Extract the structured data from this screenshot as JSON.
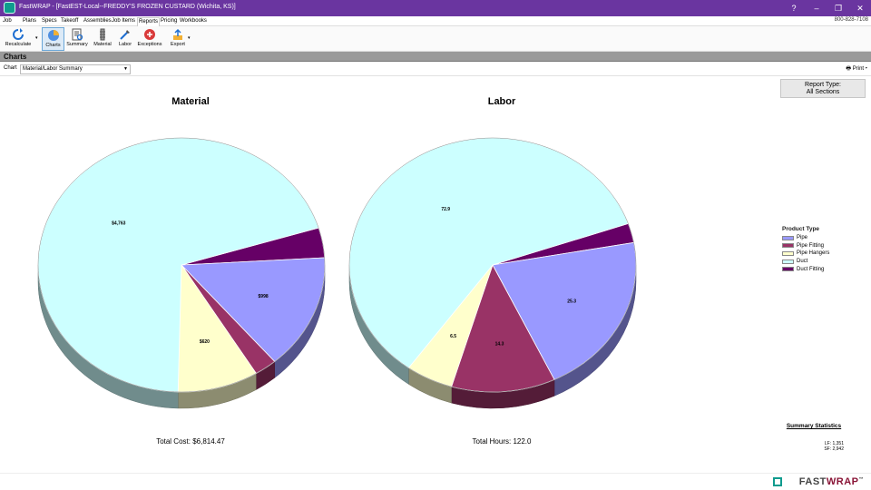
{
  "window": {
    "title": "FastWRAP - [FastEST-Local--FREDDY'S FROZEN CUSTARD (Wichita, KS)]"
  },
  "menu": {
    "items": [
      "Job",
      "Plans",
      "Specs",
      "Takeoff",
      "Assemblies",
      "Job Items",
      "Reports",
      "Pricing",
      "Workbooks"
    ],
    "active": "Reports",
    "phone": "800-828-7108"
  },
  "toolbar": {
    "recalculate": "Recalculate",
    "charts": "Charts",
    "summary": "Summary",
    "material": "Material",
    "labor": "Labor",
    "exceptions": "Exceptions",
    "export": "Export"
  },
  "section": {
    "title": "Charts"
  },
  "chart_selector": {
    "label": "Chart",
    "value": "Material/Labor Summary",
    "print": "Print"
  },
  "report_type": {
    "line1": "Report Type:",
    "line2": "All Sections"
  },
  "legend": {
    "title": "Product Type",
    "items": [
      {
        "name": "Pipe",
        "color": "#9999ff"
      },
      {
        "name": "Pipe Fitting",
        "color": "#993366"
      },
      {
        "name": "Pipe Hangers",
        "color": "#ffffcc"
      },
      {
        "name": "Duct",
        "color": "#ccffff"
      },
      {
        "name": "Duct Fitting",
        "color": "#660066"
      }
    ]
  },
  "chart_data": [
    {
      "type": "pie",
      "title": "Material",
      "total_label": "Total Cost: $6,814.47",
      "slices": [
        {
          "name": "Duct Fitting",
          "value": "",
          "numeric": 260,
          "color": "#660066"
        },
        {
          "name": "Pipe",
          "value": "$998",
          "numeric": 998,
          "color": "#9999ff"
        },
        {
          "name": "Pipe Fitting",
          "value": "",
          "numeric": 173,
          "color": "#993366"
        },
        {
          "name": "Pipe Hangers",
          "value": "$620",
          "numeric": 620,
          "color": "#ffffcc"
        },
        {
          "name": "Duct",
          "value": "$4,763",
          "numeric": 4763,
          "color": "#ccffff"
        }
      ]
    },
    {
      "type": "pie",
      "title": "Labor",
      "total_label": "Total Hours: 122.0",
      "slices": [
        {
          "name": "Duct Fitting",
          "value": "",
          "numeric": 3.0,
          "color": "#660066"
        },
        {
          "name": "Pipe",
          "value": "25.3",
          "numeric": 25.3,
          "color": "#9999ff"
        },
        {
          "name": "Pipe Fitting",
          "value": "14.3",
          "numeric": 14.3,
          "color": "#993366"
        },
        {
          "name": "Pipe Hangers",
          "value": "6.5",
          "numeric": 6.5,
          "color": "#ffffcc"
        },
        {
          "name": "Duct",
          "value": "72.9",
          "numeric": 72.9,
          "color": "#ccffff"
        }
      ]
    }
  ],
  "stats": {
    "title": "Summary Statistics",
    "lf": "LF:   1,351",
    "sf": "SF:   2,942"
  },
  "brand": {
    "name_a": "FAST",
    "name_b": "WRAP",
    "tm": "™"
  }
}
